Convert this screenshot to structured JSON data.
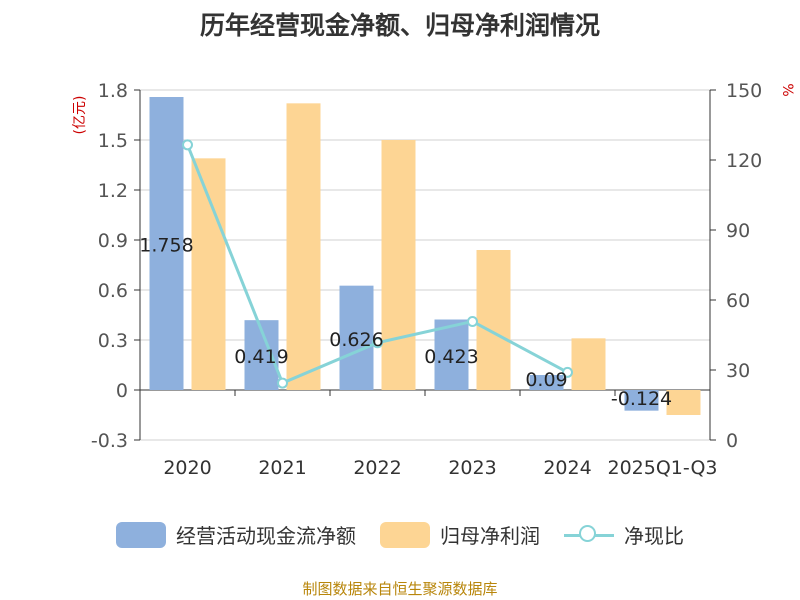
{
  "title": "历年经营现金净额、归母净利润情况",
  "source": "制图数据来自恒生聚源数据库",
  "colors": {
    "bar1": "#8eb0dd",
    "bar2": "#fdd594",
    "line": "#86d3d7",
    "unit": "#cc0000"
  },
  "chart_data": {
    "type": "bar",
    "title": "历年经营现金净额、归母净利润情况",
    "categories": [
      "2020",
      "2021",
      "2022",
      "2023",
      "2024",
      "2025Q1-Q3"
    ],
    "left_axis": {
      "unit": "(亿元)",
      "range": [
        -0.3,
        1.8
      ],
      "ticks": [
        "1.8",
        "1.5",
        "1.2",
        "0.9",
        "0.6",
        "0.3",
        "0",
        "-0.3"
      ]
    },
    "right_axis": {
      "unit": "%",
      "range": [
        0,
        150
      ],
      "ticks": [
        "150",
        "120",
        "90",
        "60",
        "30",
        "0"
      ]
    },
    "series": [
      {
        "name": "经营活动现金流净额",
        "type": "bar",
        "axis": "left",
        "values": [
          1.758,
          0.419,
          0.626,
          0.423,
          0.09,
          -0.124
        ],
        "labels": [
          "1.758",
          "0.419",
          "0.626",
          "0.423",
          "0.09",
          "-0.124"
        ]
      },
      {
        "name": "归母净利润",
        "type": "bar",
        "axis": "left",
        "values": [
          1.39,
          1.72,
          1.5,
          0.84,
          0.31,
          -0.15
        ]
      },
      {
        "name": "净现比",
        "type": "line",
        "axis": "right",
        "values": [
          126.5,
          24.4,
          41.7,
          50.8,
          29.0,
          null
        ]
      }
    ],
    "grid": true,
    "legend_position": "bottom"
  }
}
